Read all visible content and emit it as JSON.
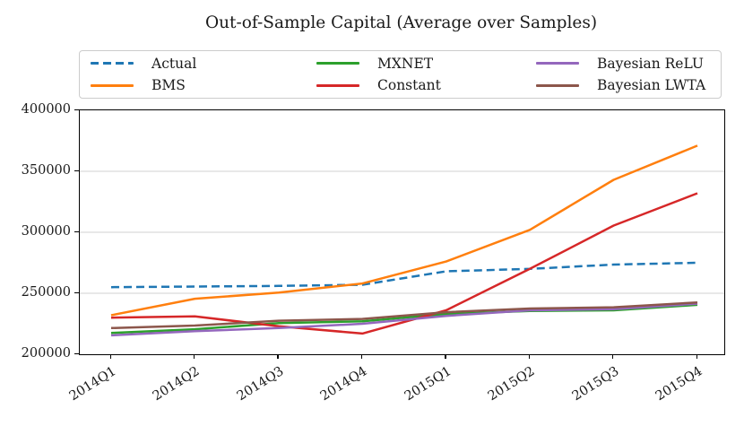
{
  "figure": {
    "title": "Out-of-Sample Capital (Average over Samples)"
  },
  "chart_data": {
    "type": "line",
    "title": "Out-of-Sample Capital (Average over Samples)",
    "xlabel": "",
    "ylabel": "",
    "categories": [
      "2014Q1",
      "2014Q2",
      "2014Q3",
      "2014Q4",
      "2015Q1",
      "2015Q2",
      "2015Q3",
      "2015Q4"
    ],
    "series": [
      {
        "name": "Actual",
        "color": "#1f77b4",
        "style": "dashed",
        "values": [
          255000,
          255500,
          256000,
          257000,
          268000,
          270000,
          273500,
          275000
        ]
      },
      {
        "name": "BMS",
        "color": "#ff7f0e",
        "style": "solid",
        "values": [
          232000,
          245500,
          250500,
          258000,
          276000,
          302000,
          343000,
          371000
        ]
      },
      {
        "name": "MXNET",
        "color": "#2ca02c",
        "style": "solid",
        "values": [
          217500,
          220500,
          225500,
          227000,
          233000,
          235500,
          236000,
          240500
        ]
      },
      {
        "name": "Constant",
        "color": "#d62728",
        "style": "solid",
        "values": [
          230000,
          231000,
          223000,
          217000,
          236000,
          270000,
          305500,
          332000
        ]
      },
      {
        "name": "Bayesian ReLU",
        "color": "#9467bd",
        "style": "solid",
        "values": [
          215500,
          219000,
          221500,
          225000,
          231500,
          236000,
          237000,
          241500
        ]
      },
      {
        "name": "Bayesian LWTA",
        "color": "#8c564b",
        "style": "solid",
        "values": [
          221500,
          223500,
          227500,
          229000,
          234500,
          237500,
          238500,
          242500
        ]
      }
    ],
    "ylim": [
      200000,
      400000
    ],
    "y_ticks": [
      {
        "label": "400000",
        "value": 400000
      },
      {
        "label": "350000",
        "value": 350000
      },
      {
        "label": "300000",
        "value": 300000
      },
      {
        "label": "250000",
        "value": 250000
      },
      {
        "label": "200000",
        "value": 200000
      }
    ],
    "grid": "horizontal-only",
    "grid_color": "#d2d2d2",
    "legend_position": "top",
    "x_tick_rotation_deg": -32
  }
}
